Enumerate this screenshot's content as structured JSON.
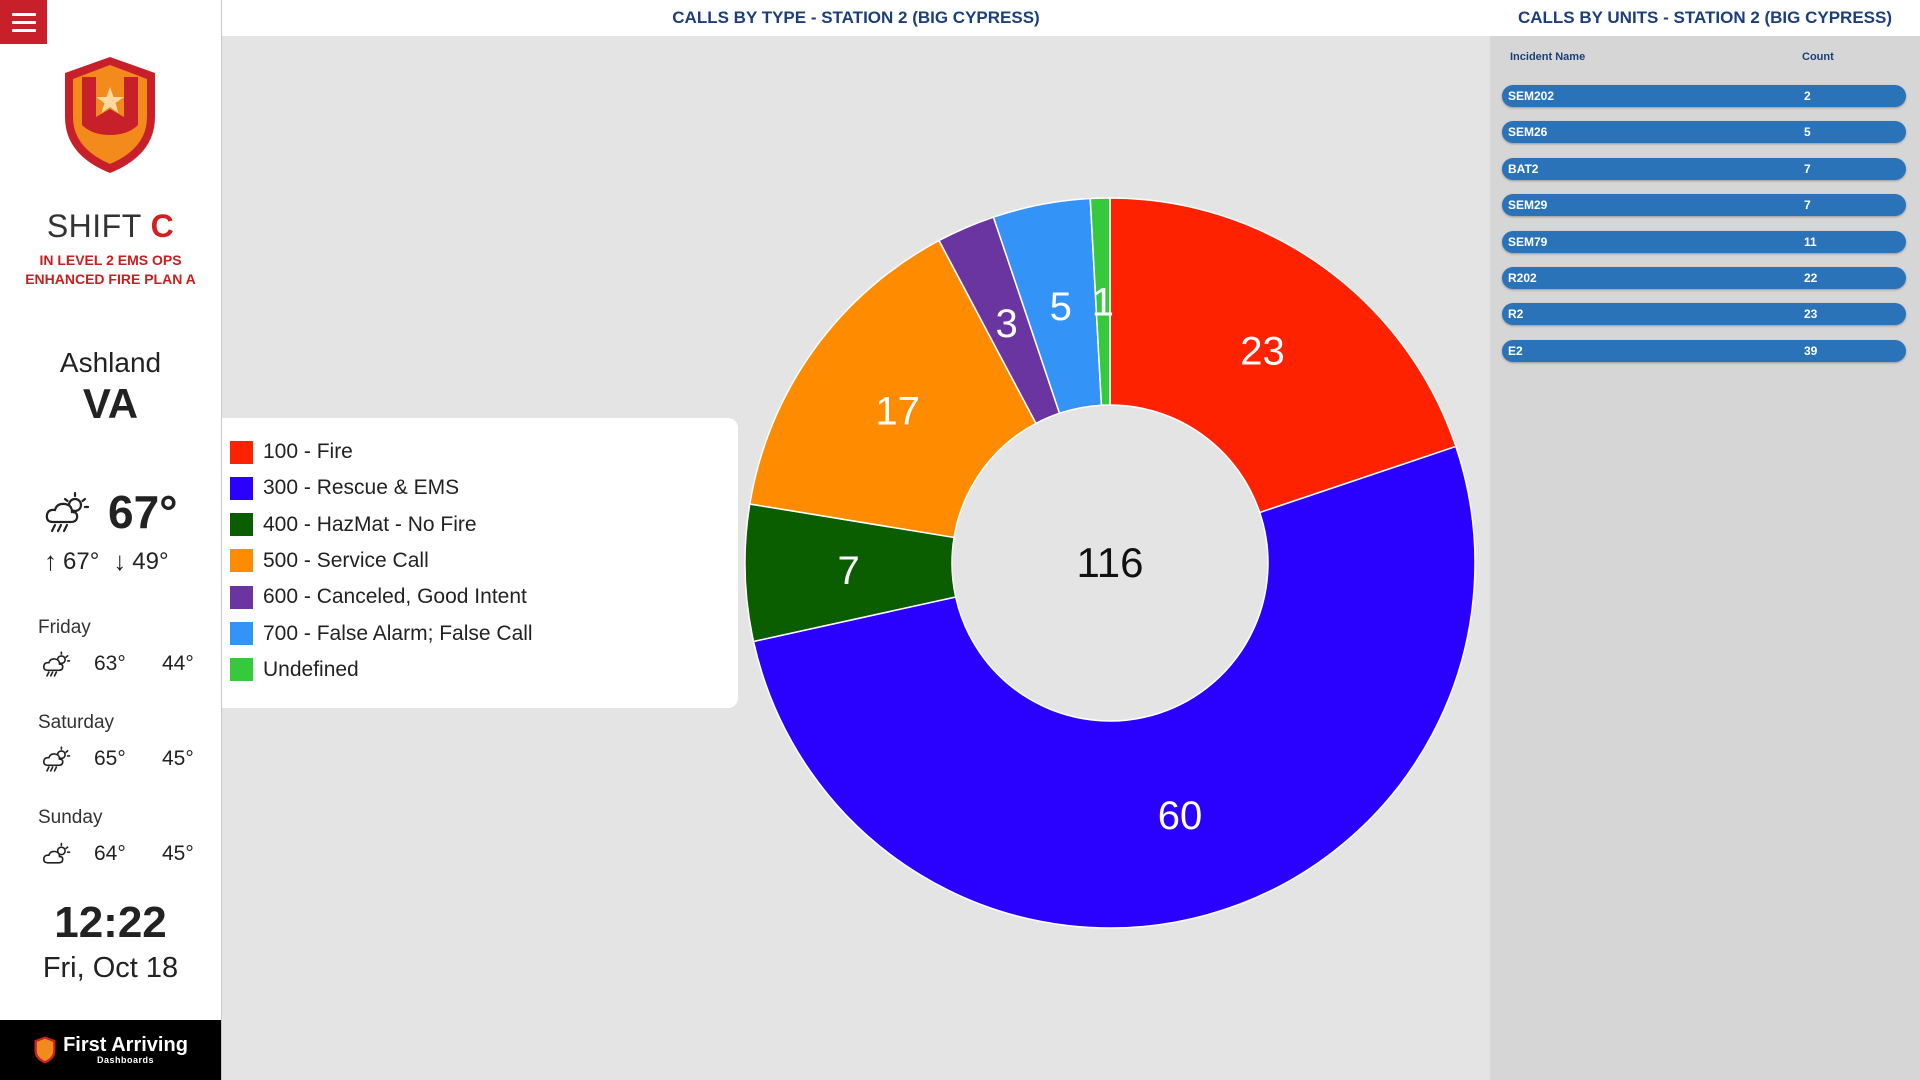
{
  "sidebar": {
    "shift_label": "SHIFT",
    "shift_letter": "C",
    "ops_line1": "IN LEVEL 2 EMS OPS",
    "ops_line2": "ENHANCED FIRE PLAN A",
    "city": "Ashland",
    "state": "VA",
    "weather": {
      "current_temp": "67°",
      "high": "67°",
      "low": "49°",
      "current_icon": "rain-sun-icon",
      "forecast": [
        {
          "day": "Friday",
          "high": "63°",
          "low": "44°",
          "icon": "rain-sun-icon"
        },
        {
          "day": "Saturday",
          "high": "65°",
          "low": "45°",
          "icon": "rain-sun-icon"
        },
        {
          "day": "Sunday",
          "high": "64°",
          "low": "45°",
          "icon": "partly-cloudy-icon"
        }
      ]
    },
    "time": "12:22",
    "date": "Fri, Oct 18",
    "brand_name": "First Arriving",
    "brand_sub": "Dashboards"
  },
  "main": {
    "title": "CALLS BY TYPE - STATION 2 (BIG CYPRESS)"
  },
  "chart_data": {
    "type": "pie",
    "donut": true,
    "total": 116,
    "legend_position": "left",
    "categories": [
      "100 - Fire",
      "300 - Rescue & EMS",
      "400 - HazMat - No Fire",
      "500 - Service Call",
      "600 - Canceled, Good Intent",
      "700 - False Alarm; False Call",
      "Undefined"
    ],
    "values": [
      23,
      60,
      7,
      17,
      3,
      5,
      1
    ],
    "colors": [
      "#ff2200",
      "#2a00ff",
      "#0b5e00",
      "#ff8c00",
      "#6a35a0",
      "#3393f6",
      "#36c93b"
    ]
  },
  "units": {
    "title": "CALLS BY UNITS - STATION 2 (BIG CYPRESS)",
    "col_name": "Incident Name",
    "col_count": "Count",
    "rows": [
      {
        "name": "SEM202",
        "count": "2"
      },
      {
        "name": "SEM26",
        "count": "5"
      },
      {
        "name": "BAT2",
        "count": "7"
      },
      {
        "name": "SEM29",
        "count": "7"
      },
      {
        "name": "SEM79",
        "count": "11"
      },
      {
        "name": "R202",
        "count": "22"
      },
      {
        "name": "R2",
        "count": "23"
      },
      {
        "name": "E2",
        "count": "39"
      }
    ]
  }
}
